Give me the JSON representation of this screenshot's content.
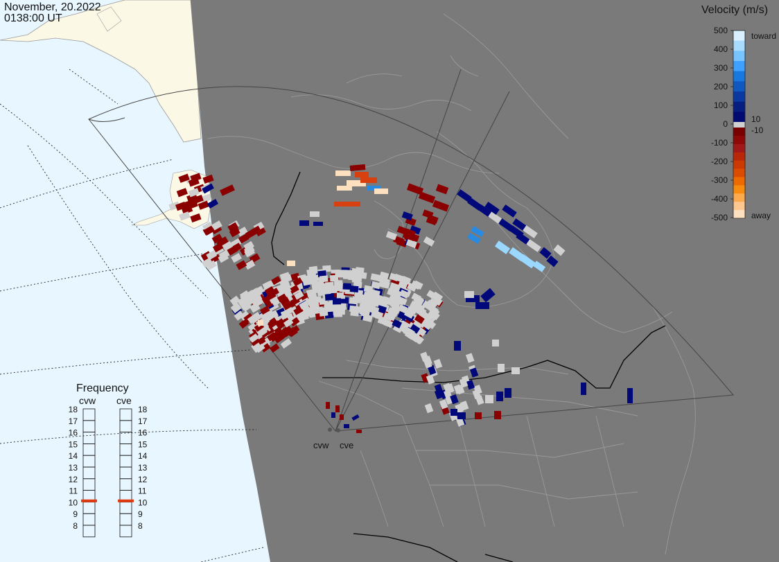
{
  "header": {
    "date": "November, 20.2022",
    "time": "0138:00 UT"
  },
  "radars": [
    {
      "code": "cvw"
    },
    {
      "code": "cve"
    }
  ],
  "colorbar": {
    "title": "Velocity (m/s)",
    "ticks": [
      "500",
      "400",
      "300",
      "200",
      "100",
      "0",
      "-100",
      "-200",
      "-300",
      "-400",
      "-500"
    ],
    "inner_labels": [
      "10",
      "-10"
    ],
    "toward_label": "toward",
    "away_label": "away",
    "toward_colors": [
      "#d8f0ff",
      "#a8dcff",
      "#78c4ff",
      "#3fa0ff",
      "#1878e0",
      "#0e58c0",
      "#0a3aa0",
      "#061e80",
      "#000a70"
    ],
    "away_colors": [
      "#7a0000",
      "#8e0808",
      "#a01818",
      "#b82808",
      "#cc3a04",
      "#dc4c00",
      "#ec6a00",
      "#f88c10",
      "#fcaa50",
      "#fcc890",
      "#fde0c0"
    ]
  },
  "frequency_panel": {
    "title": "Frequency",
    "radar_labels": [
      "cvw",
      "cve"
    ],
    "scale": [
      "18",
      "17",
      "16",
      "15",
      "14",
      "13",
      "12",
      "11",
      "10",
      "9",
      "8"
    ],
    "cvw_value_mhz": 10.6,
    "cve_value_mhz": 10.6,
    "marker_color": "#e03a10"
  },
  "map_colors": {
    "ocean": "#e8f6ff",
    "land_outside": "#fbf8e6",
    "land_fov": "#7a7a7a",
    "low_velocity": "#d0d0d0"
  }
}
